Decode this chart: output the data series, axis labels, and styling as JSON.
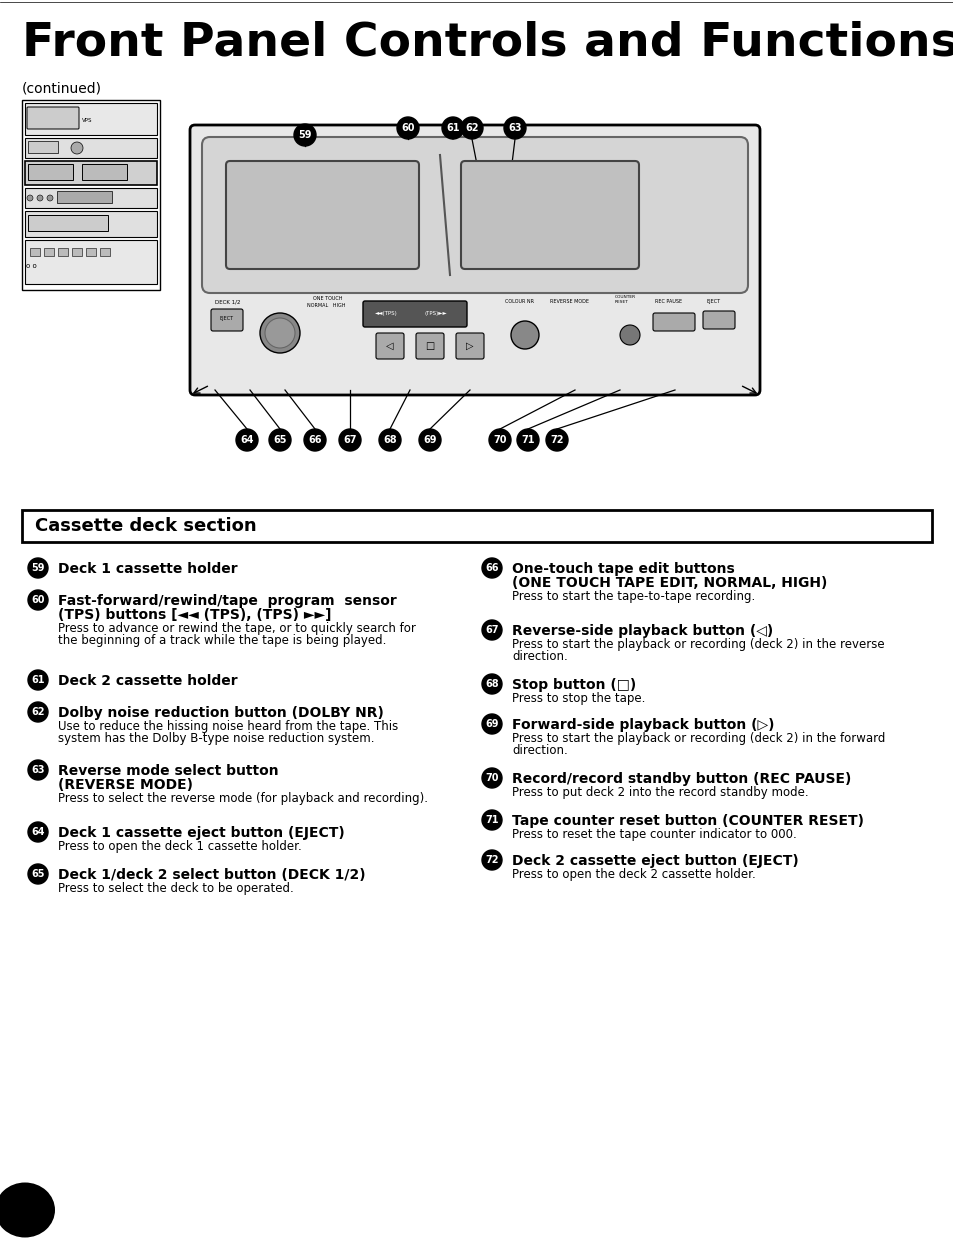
{
  "title": "Front Panel Controls and Functions",
  "continued": "(continued)",
  "section_header": "Cassette deck section",
  "bg_color": "#ffffff",
  "text_color": "#000000",
  "left_items": [
    {
      "num": "59",
      "bold": "Deck 1 cassette holder",
      "body": ""
    },
    {
      "num": "60",
      "bold": "Fast-forward/rewind/tape  program  sensor\n(TPS) buttons [◄◄ (TPS), (TPS) ►►]",
      "body": "Press to advance or rewind the tape, or to quickly search for\nthe beginning of a track while the tape is being played."
    },
    {
      "num": "61",
      "bold": "Deck 2 cassette holder",
      "body": ""
    },
    {
      "num": "62",
      "bold": "Dolby noise reduction button (DOLBY NR)",
      "body": "Use to reduce the hissing noise heard from the tape. This\nsystem has the Dolby B-type noise reduction system."
    },
    {
      "num": "63",
      "bold": "Reverse mode select button\n(REVERSE MODE)",
      "body": "Press to select the reverse mode (for playback and recording)."
    },
    {
      "num": "64",
      "bold": "Deck 1 cassette eject button (EJECT)",
      "body": "Press to open the deck 1 cassette holder."
    },
    {
      "num": "65",
      "bold": "Deck 1/deck 2 select button (DECK 1/2)",
      "body": "Press to select the deck to be operated."
    }
  ],
  "right_items": [
    {
      "num": "66",
      "bold": "One-touch tape edit buttons\n(ONE TOUCH TAPE EDIT, NORMAL, HIGH)",
      "body": "Press to start the tape-to-tape recording."
    },
    {
      "num": "67",
      "bold": "Reverse-side playback button (◁)",
      "body": "Press to start the playback or recording (deck 2) in the reverse\ndirection."
    },
    {
      "num": "68",
      "bold": "Stop button (□)",
      "body": "Press to stop the tape."
    },
    {
      "num": "69",
      "bold": "Forward-side playback button (▷)",
      "body": "Press to start the playback or recording (deck 2) in the forward\ndirection."
    },
    {
      "num": "70",
      "bold": "Record/record standby button (REC PAUSE)",
      "body": "Press to put deck 2 into the record standby mode."
    },
    {
      "num": "71",
      "bold": "Tape counter reset button (COUNTER RESET)",
      "body": "Press to reset the tape counter indicator to 000."
    },
    {
      "num": "72",
      "bold": "Deck 2 cassette eject button (EJECT)",
      "body": "Press to open the deck 2 cassette holder."
    }
  ]
}
